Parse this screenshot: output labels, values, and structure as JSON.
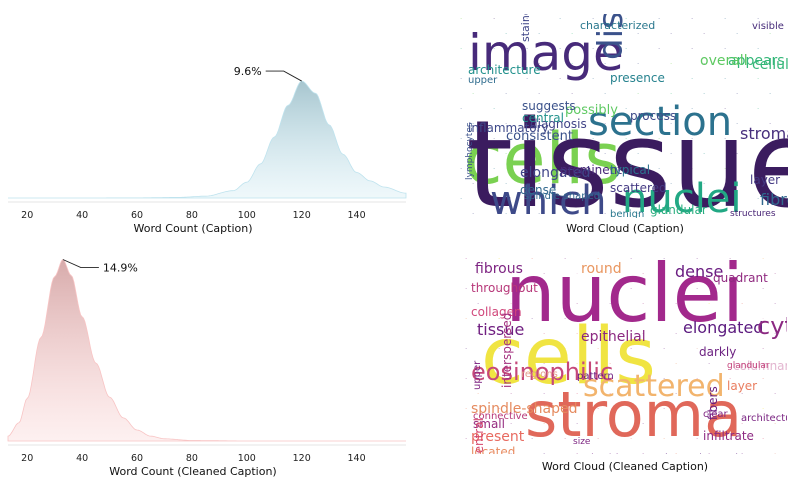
{
  "chart_data": [
    {
      "type": "area",
      "id": "caption-density",
      "xlabel": "Word Count (Caption)",
      "xticks": [
        20,
        40,
        60,
        80,
        100,
        120,
        140
      ],
      "xlim": [
        13,
        158
      ],
      "peak_label": "9.6%",
      "peak_x": 120,
      "peak_percent": 9.6,
      "fill_color": "#bfe3ee",
      "density": {
        "x": [
          13,
          40,
          60,
          75,
          85,
          95,
          100,
          105,
          110,
          115,
          120,
          125,
          130,
          135,
          140,
          145,
          150,
          158
        ],
        "y": [
          0,
          0,
          0.01,
          0.05,
          0.15,
          0.6,
          1.3,
          2.8,
          5.0,
          7.6,
          9.6,
          8.6,
          6.0,
          3.6,
          2.1,
          1.4,
          0.9,
          0.4
        ]
      }
    },
    {
      "type": "area",
      "id": "cleaned-caption-density",
      "xlabel": "Word Count (Cleaned Caption)",
      "xticks": [
        20,
        40,
        60,
        80,
        100,
        120,
        140
      ],
      "xlim": [
        13,
        158
      ],
      "peak_label": "14.9%",
      "peak_x": 33,
      "peak_percent": 14.9,
      "fill_color": "#f8c4c4",
      "density": {
        "x": [
          13,
          17,
          20,
          25,
          30,
          33,
          36,
          40,
          45,
          50,
          55,
          60,
          65,
          70,
          80,
          100,
          158
        ],
        "y": [
          0.4,
          1.5,
          3.5,
          8.5,
          13.5,
          14.9,
          13.6,
          10.2,
          6.4,
          3.6,
          1.9,
          0.9,
          0.4,
          0.18,
          0.04,
          0,
          0
        ]
      }
    }
  ],
  "clouds": [
    {
      "id": "caption-cloud",
      "title": "Word Cloud (Caption)",
      "words": [
        {
          "text": "cells",
          "color": "#7ad151"
        },
        {
          "text": "tissue",
          "color": "#3b1c5f"
        },
        {
          "text": "image",
          "color": "#472a7a"
        },
        {
          "text": "section",
          "color": "#2c728e"
        },
        {
          "text": "which",
          "color": "#3e4a89"
        },
        {
          "text": "nuclei",
          "color": "#22a884"
        },
        {
          "text": "displays",
          "color": "#3b528b"
        },
        {
          "text": "stroma",
          "color": "#472f7d"
        },
        {
          "text": "fibrous",
          "color": "#31688e"
        },
        {
          "text": "elongated",
          "color": "#404688"
        },
        {
          "text": "consistent",
          "color": "#3b528b"
        },
        {
          "text": "architecture",
          "color": "#21918c"
        },
        {
          "text": "characterized",
          "color": "#2a788e"
        },
        {
          "text": "appears",
          "color": "#35b779"
        },
        {
          "text": "possibly",
          "color": "#5ec962"
        },
        {
          "text": "inflammatory",
          "color": "#3e4989"
        },
        {
          "text": "scattered",
          "color": "#443a83"
        },
        {
          "text": "prominent",
          "color": "#482878"
        },
        {
          "text": "dense",
          "color": "#31688e"
        },
        {
          "text": "overall",
          "color": "#5ec962"
        },
        {
          "text": "cellular",
          "color": "#35b779"
        },
        {
          "text": "presence",
          "color": "#26828e"
        },
        {
          "text": "diagnosis",
          "color": "#414487"
        },
        {
          "text": "typical",
          "color": "#2c728e"
        },
        {
          "text": "suggests",
          "color": "#3b528b"
        },
        {
          "text": "central",
          "color": "#21918c"
        },
        {
          "text": "layer",
          "color": "#443983"
        },
        {
          "text": "visible",
          "color": "#472c7a"
        },
        {
          "text": "stained",
          "color": "#404688"
        },
        {
          "text": "benign",
          "color": "#2a788e"
        },
        {
          "text": "lymphocytes",
          "color": "#3b528b"
        },
        {
          "text": "spindle-shaped",
          "color": "#31688e"
        },
        {
          "text": "structures",
          "color": "#482475"
        },
        {
          "text": "glandular",
          "color": "#29af7f"
        },
        {
          "text": "upper",
          "color": "#2f6c8e"
        },
        {
          "text": "process",
          "color": "#3e4a89"
        }
      ]
    },
    {
      "id": "cleaned-caption-cloud",
      "title": "Word Cloud (Cleaned  Caption)",
      "words": [
        {
          "text": "nuclei",
          "color": "#a2298c"
        },
        {
          "text": "cells",
          "color": "#f0e442"
        },
        {
          "text": "stroma",
          "color": "#e0685a"
        },
        {
          "text": "fibrous",
          "color": "#7e2482"
        },
        {
          "text": "round",
          "color": "#e9965f"
        },
        {
          "text": "dense",
          "color": "#6a1c81"
        },
        {
          "text": "elongated",
          "color": "#5b1a7f"
        },
        {
          "text": "tissue",
          "color": "#701f81"
        },
        {
          "text": "cytoplasm",
          "color": "#8b2982"
        },
        {
          "text": "scattered",
          "color": "#f2b46d"
        },
        {
          "text": "eosinophilic",
          "color": "#c6487a"
        },
        {
          "text": "spindle-shaped",
          "color": "#e58a5e"
        },
        {
          "text": "epithelial",
          "color": "#8c2981"
        },
        {
          "text": "columnar",
          "color": "#e3b6d0"
        },
        {
          "text": "darkly",
          "color": "#6d2382"
        },
        {
          "text": "throughout",
          "color": "#b73779"
        },
        {
          "text": "collagen",
          "color": "#d1477b"
        },
        {
          "text": "present",
          "color": "#e86a60"
        },
        {
          "text": "located",
          "color": "#e88c62"
        },
        {
          "text": "small",
          "color": "#962c80"
        },
        {
          "text": "upper",
          "color": "#7c2382"
        },
        {
          "text": "central",
          "color": "#d6456c"
        },
        {
          "text": "connective",
          "color": "#b73779"
        },
        {
          "text": "lymphocytes",
          "color": "#7b2a8a"
        },
        {
          "text": "hyperchromatic",
          "color": "#5a1b7e"
        },
        {
          "text": "infiltrate",
          "color": "#8e2a82"
        },
        {
          "text": "fibers",
          "color": "#6a1d80"
        },
        {
          "text": "clear",
          "color": "#802582"
        },
        {
          "text": "layer",
          "color": "#e97d5f"
        },
        {
          "text": "size",
          "color": "#7d2582"
        },
        {
          "text": "pattern",
          "color": "#6a1c81"
        },
        {
          "text": "regions",
          "color": "#e39b8a"
        },
        {
          "text": "glandular",
          "color": "#c4437c"
        },
        {
          "text": "quadrant",
          "color": "#902a80"
        },
        {
          "text": "architecture",
          "color": "#7a2482"
        },
        {
          "text": "interspersed",
          "color": "#a3307e"
        }
      ]
    }
  ]
}
